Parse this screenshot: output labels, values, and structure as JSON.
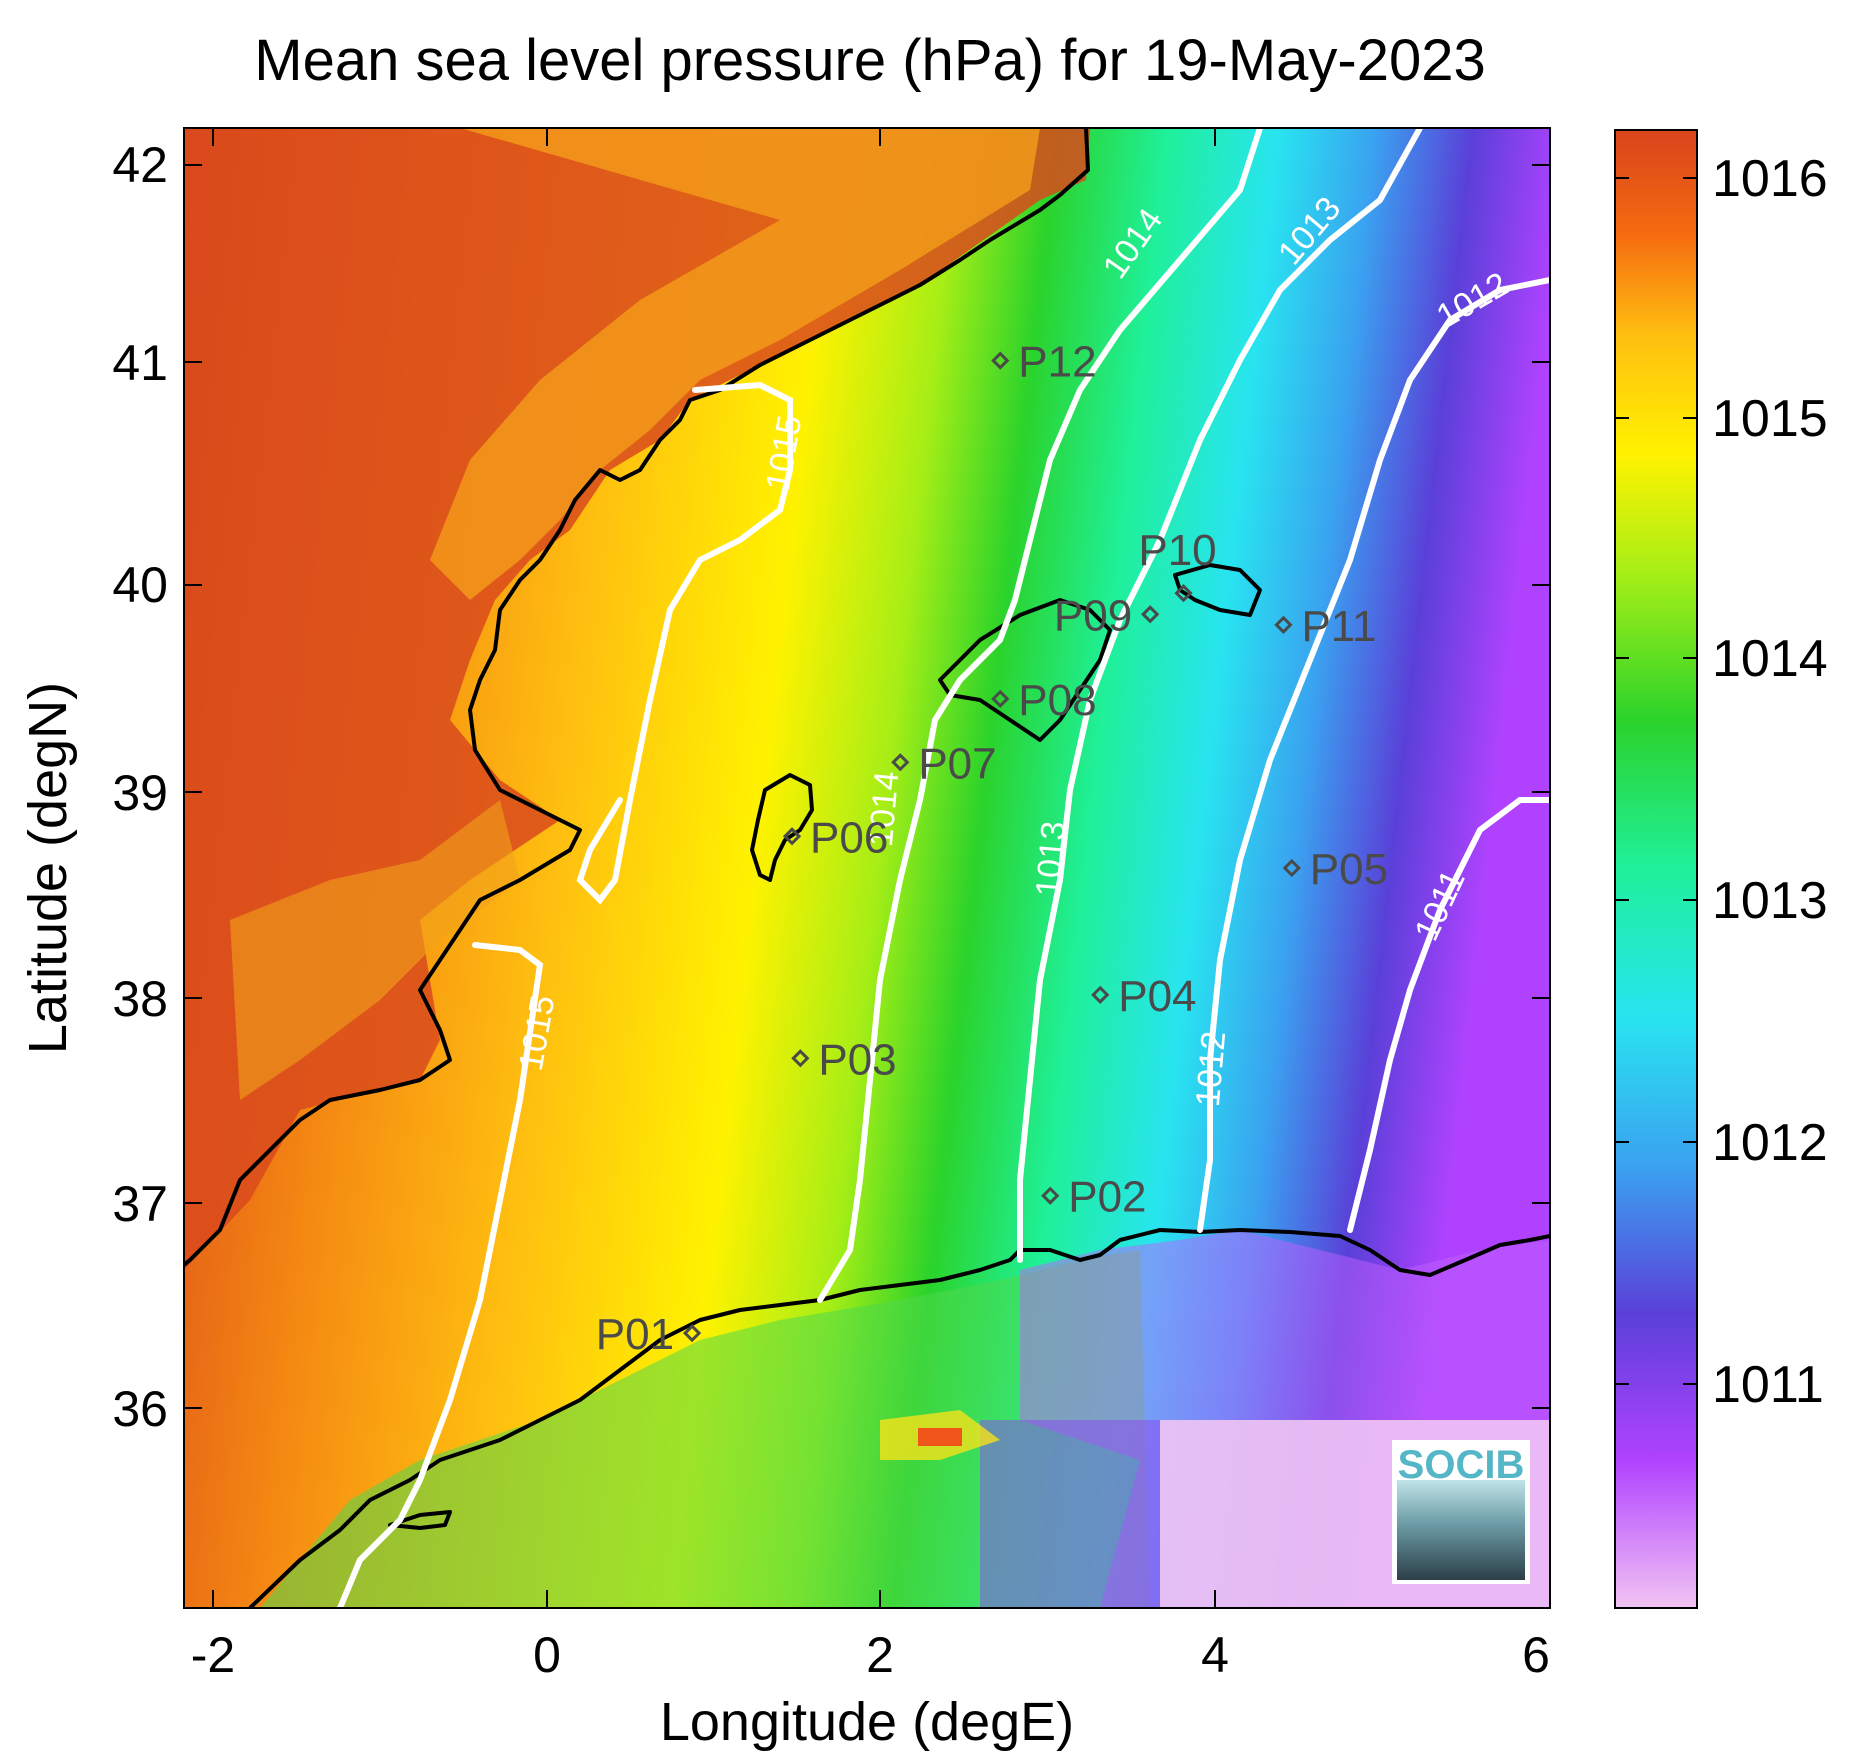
{
  "title": "Mean sea level pressure (hPa) for 19-May-2023",
  "xlabel": "Longitude (degE)",
  "ylabel": "Latitude (degN)",
  "x_ticks": [
    "-2",
    "0",
    "2",
    "4",
    "6"
  ],
  "y_ticks": [
    "42",
    "41",
    "40",
    "39",
    "38",
    "37",
    "36"
  ],
  "colorbar": {
    "ticks": [
      "1016",
      "1015",
      "1014",
      "1013",
      "1012",
      "1011"
    ],
    "range": [
      1010.1,
      1016.2
    ],
    "colors": [
      "#f2c4f4",
      "#b042ff",
      "#5a40d8",
      "#3aa2f0",
      "#28e4f0",
      "#1ff09a",
      "#2bd32b",
      "#a6ee16",
      "#fff200",
      "#ffc010",
      "#f56a10",
      "#d9441c"
    ]
  },
  "logo": "SOCIB",
  "chart_data": {
    "type": "heatmap",
    "variable": "Mean sea level pressure (hPa)",
    "date": "19-May-2023",
    "xlim": [
      -2.2,
      6
    ],
    "ylim": [
      35.2,
      42.2
    ],
    "contours": [
      {
        "level": 1015,
        "labels": [
          "1015",
          "1015"
        ]
      },
      {
        "level": 1014,
        "labels": [
          "1014",
          "1014"
        ]
      },
      {
        "level": 1013,
        "labels": [
          "1013",
          "1013"
        ]
      },
      {
        "level": 1012,
        "labels": [
          "1012",
          "1012"
        ]
      },
      {
        "level": 1011,
        "labels": [
          "1011"
        ]
      }
    ],
    "points": [
      {
        "name": "P01",
        "lon": 0.85,
        "lat": 36.5
      },
      {
        "name": "P02",
        "lon": 3.0,
        "lat": 37.15
      },
      {
        "name": "P03",
        "lon": 1.5,
        "lat": 37.8
      },
      {
        "name": "P04",
        "lon": 3.3,
        "lat": 38.1
      },
      {
        "name": "P05",
        "lon": 4.45,
        "lat": 38.7
      },
      {
        "name": "P06",
        "lon": 1.45,
        "lat": 38.85
      },
      {
        "name": "P07",
        "lon": 2.1,
        "lat": 39.2
      },
      {
        "name": "P08",
        "lon": 2.7,
        "lat": 39.5
      },
      {
        "name": "P09",
        "lon": 3.6,
        "lat": 39.9
      },
      {
        "name": "P10",
        "lon": 3.8,
        "lat": 40.0
      },
      {
        "name": "P11",
        "lon": 4.4,
        "lat": 39.85
      },
      {
        "name": "P12",
        "lon": 2.7,
        "lat": 41.1
      }
    ]
  }
}
